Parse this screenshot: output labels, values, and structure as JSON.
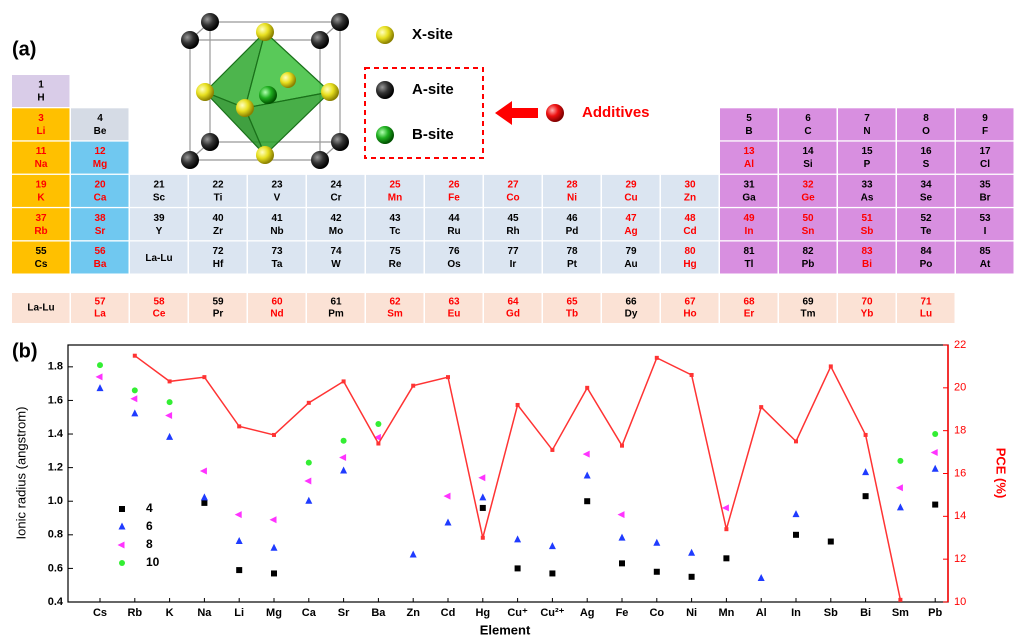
{
  "panel_a": {
    "label": "(a)",
    "legend": {
      "x_site": "X-site",
      "a_site": "A-site",
      "b_site": "B-site",
      "additives": "Additives"
    },
    "rows": [
      [
        {
          "n": 1,
          "s": "H",
          "fill": "#d9cce8",
          "color": "#000000"
        },
        null,
        null,
        null,
        null,
        null,
        null,
        null,
        null,
        null,
        null,
        null,
        null,
        null,
        null,
        null,
        null
      ],
      [
        {
          "n": 3,
          "s": "Li",
          "fill": "#ffc000",
          "color": "#ff0000"
        },
        {
          "n": 4,
          "s": "Be",
          "fill": "#d5dbe5",
          "color": "#000000"
        },
        null,
        null,
        null,
        null,
        null,
        null,
        null,
        null,
        null,
        null,
        {
          "n": 5,
          "s": "B",
          "fill": "#d88fe0",
          "color": "#000000"
        },
        {
          "n": 6,
          "s": "C",
          "fill": "#d88fe0",
          "color": "#000000"
        },
        {
          "n": 7,
          "s": "N",
          "fill": "#d88fe0",
          "color": "#000000"
        },
        {
          "n": 8,
          "s": "O",
          "fill": "#d88fe0",
          "color": "#000000"
        },
        {
          "n": 9,
          "s": "F",
          "fill": "#d88fe0",
          "color": "#000000"
        }
      ],
      [
        {
          "n": 11,
          "s": "Na",
          "fill": "#ffc000",
          "color": "#ff0000"
        },
        {
          "n": 12,
          "s": "Mg",
          "fill": "#70c8f0",
          "color": "#ff0000"
        },
        null,
        null,
        null,
        null,
        null,
        null,
        null,
        null,
        null,
        null,
        {
          "n": 13,
          "s": "Al",
          "fill": "#d88fe0",
          "color": "#ff0000"
        },
        {
          "n": 14,
          "s": "Si",
          "fill": "#d88fe0",
          "color": "#000000"
        },
        {
          "n": 15,
          "s": "P",
          "fill": "#d88fe0",
          "color": "#000000"
        },
        {
          "n": 16,
          "s": "S",
          "fill": "#d88fe0",
          "color": "#000000"
        },
        {
          "n": 17,
          "s": "Cl",
          "fill": "#d88fe0",
          "color": "#000000"
        }
      ],
      [
        {
          "n": 19,
          "s": "K",
          "fill": "#ffc000",
          "color": "#ff0000"
        },
        {
          "n": 20,
          "s": "Ca",
          "fill": "#70c8f0",
          "color": "#ff0000"
        },
        {
          "n": 21,
          "s": "Sc",
          "fill": "#dbe5f1",
          "color": "#000000"
        },
        {
          "n": 22,
          "s": "Ti",
          "fill": "#dbe5f1",
          "color": "#000000"
        },
        {
          "n": 23,
          "s": "V",
          "fill": "#dbe5f1",
          "color": "#000000"
        },
        {
          "n": 24,
          "s": "Cr",
          "fill": "#dbe5f1",
          "color": "#000000"
        },
        {
          "n": 25,
          "s": "Mn",
          "fill": "#dbe5f1",
          "color": "#ff0000"
        },
        {
          "n": 26,
          "s": "Fe",
          "fill": "#dbe5f1",
          "color": "#ff0000"
        },
        {
          "n": 27,
          "s": "Co",
          "fill": "#dbe5f1",
          "color": "#ff0000"
        },
        {
          "n": 28,
          "s": "Ni",
          "fill": "#dbe5f1",
          "color": "#ff0000"
        },
        {
          "n": 29,
          "s": "Cu",
          "fill": "#dbe5f1",
          "color": "#ff0000"
        },
        {
          "n": 30,
          "s": "Zn",
          "fill": "#dbe5f1",
          "color": "#ff0000"
        },
        {
          "n": 31,
          "s": "Ga",
          "fill": "#d88fe0",
          "color": "#000000"
        },
        {
          "n": 32,
          "s": "Ge",
          "fill": "#d88fe0",
          "color": "#ff0000"
        },
        {
          "n": 33,
          "s": "As",
          "fill": "#d88fe0",
          "color": "#000000"
        },
        {
          "n": 34,
          "s": "Se",
          "fill": "#d88fe0",
          "color": "#000000"
        },
        {
          "n": 35,
          "s": "Br",
          "fill": "#d88fe0",
          "color": "#000000"
        }
      ],
      [
        {
          "n": 37,
          "s": "Rb",
          "fill": "#ffc000",
          "color": "#ff0000"
        },
        {
          "n": 38,
          "s": "Sr",
          "fill": "#70c8f0",
          "color": "#ff0000"
        },
        {
          "n": 39,
          "s": "Y",
          "fill": "#dbe5f1",
          "color": "#000000"
        },
        {
          "n": 40,
          "s": "Zr",
          "fill": "#dbe5f1",
          "color": "#000000"
        },
        {
          "n": 41,
          "s": "Nb",
          "fill": "#dbe5f1",
          "color": "#000000"
        },
        {
          "n": 42,
          "s": "Mo",
          "fill": "#dbe5f1",
          "color": "#000000"
        },
        {
          "n": 43,
          "s": "Tc",
          "fill": "#dbe5f1",
          "color": "#000000"
        },
        {
          "n": 44,
          "s": "Ru",
          "fill": "#dbe5f1",
          "color": "#000000"
        },
        {
          "n": 45,
          "s": "Rh",
          "fill": "#dbe5f1",
          "color": "#000000"
        },
        {
          "n": 46,
          "s": "Pd",
          "fill": "#dbe5f1",
          "color": "#000000"
        },
        {
          "n": 47,
          "s": "Ag",
          "fill": "#dbe5f1",
          "color": "#ff0000"
        },
        {
          "n": 48,
          "s": "Cd",
          "fill": "#dbe5f1",
          "color": "#ff0000"
        },
        {
          "n": 49,
          "s": "In",
          "fill": "#d88fe0",
          "color": "#ff0000"
        },
        {
          "n": 50,
          "s": "Sn",
          "fill": "#d88fe0",
          "color": "#ff0000"
        },
        {
          "n": 51,
          "s": "Sb",
          "fill": "#d88fe0",
          "color": "#ff0000"
        },
        {
          "n": 52,
          "s": "Te",
          "fill": "#d88fe0",
          "color": "#000000"
        },
        {
          "n": 53,
          "s": "I",
          "fill": "#d88fe0",
          "color": "#000000"
        }
      ],
      [
        {
          "n": 55,
          "s": "Cs",
          "fill": "#ffc000",
          "color": "#000000"
        },
        {
          "n": 56,
          "s": "Ba",
          "fill": "#70c8f0",
          "color": "#ff0000"
        },
        {
          "s": "La-Lu",
          "fill": "#dbe5f1",
          "color": "#000000"
        },
        {
          "n": 72,
          "s": "Hf",
          "fill": "#dbe5f1",
          "color": "#000000"
        },
        {
          "n": 73,
          "s": "Ta",
          "fill": "#dbe5f1",
          "color": "#000000"
        },
        {
          "n": 74,
          "s": "W",
          "fill": "#dbe5f1",
          "color": "#000000"
        },
        {
          "n": 75,
          "s": "Re",
          "fill": "#dbe5f1",
          "color": "#000000"
        },
        {
          "n": 76,
          "s": "Os",
          "fill": "#dbe5f1",
          "color": "#000000"
        },
        {
          "n": 77,
          "s": "Ir",
          "fill": "#dbe5f1",
          "color": "#000000"
        },
        {
          "n": 78,
          "s": "Pt",
          "fill": "#dbe5f1",
          "color": "#000000"
        },
        {
          "n": 79,
          "s": "Au",
          "fill": "#dbe5f1",
          "color": "#000000"
        },
        {
          "n": 80,
          "s": "Hg",
          "fill": "#dbe5f1",
          "color": "#ff0000"
        },
        {
          "n": 81,
          "s": "Tl",
          "fill": "#d88fe0",
          "color": "#000000"
        },
        {
          "n": 82,
          "s": "Pb",
          "fill": "#d88fe0",
          "color": "#000000"
        },
        {
          "n": 83,
          "s": "Bi",
          "fill": "#d88fe0",
          "color": "#ff0000"
        },
        {
          "n": 84,
          "s": "Po",
          "fill": "#d88fe0",
          "color": "#000000"
        },
        {
          "n": 85,
          "s": "At",
          "fill": "#d88fe0",
          "color": "#000000"
        }
      ]
    ],
    "lanthanides": {
      "label": "La-Lu",
      "fill": "#fbe2d5",
      "cells": [
        {
          "n": 57,
          "s": "La",
          "color": "#ff0000"
        },
        {
          "n": 58,
          "s": "Ce",
          "color": "#ff0000"
        },
        {
          "n": 59,
          "s": "Pr",
          "color": "#000000"
        },
        {
          "n": 60,
          "s": "Nd",
          "color": "#ff0000"
        },
        {
          "n": 61,
          "s": "Pm",
          "color": "#000000"
        },
        {
          "n": 62,
          "s": "Sm",
          "color": "#ff0000"
        },
        {
          "n": 63,
          "s": "Eu",
          "color": "#ff0000"
        },
        {
          "n": 64,
          "s": "Gd",
          "color": "#ff0000"
        },
        {
          "n": 65,
          "s": "Tb",
          "color": "#ff0000"
        },
        {
          "n": 66,
          "s": "Dy",
          "color": "#000000"
        },
        {
          "n": 67,
          "s": "Ho",
          "color": "#ff0000"
        },
        {
          "n": 68,
          "s": "Er",
          "color": "#ff0000"
        },
        {
          "n": 69,
          "s": "Tm",
          "color": "#000000"
        },
        {
          "n": 70,
          "s": "Yb",
          "color": "#ff0000"
        },
        {
          "n": 71,
          "s": "Lu",
          "color": "#ff0000"
        }
      ]
    }
  },
  "chart_data": {
    "type": "scatter",
    "label": "(b)",
    "x_label": "Element",
    "y_label": "Ionic radius (angstrom)",
    "y2_label": "PCE (%)",
    "categories": [
      "Cs",
      "Rb",
      "K",
      "Na",
      "Li",
      "Mg",
      "Ca",
      "Sr",
      "Ba",
      "Zn",
      "Cd",
      "Hg",
      "Cu⁺",
      "Cu²⁺",
      "Ag",
      "Fe",
      "Co",
      "Ni",
      "Mn",
      "Al",
      "In",
      "Sb",
      "Bi",
      "Sm",
      "Pb"
    ],
    "ylim": [
      0.4,
      1.93
    ],
    "yticks": [
      0.4,
      0.6,
      0.8,
      {
        "value": 1,
        "label": "1.0"
      },
      1.2,
      1.4,
      1.6,
      1.8
    ],
    "y2lim": [
      10,
      22
    ],
    "y2ticks": [
      10,
      12,
      14,
      16,
      18,
      20,
      22
    ],
    "y2_color": "#ff0000",
    "legend": "lower left",
    "series": [
      {
        "name": "4",
        "color": "#000000",
        "marker": "square",
        "values": [
          null,
          null,
          null,
          0.99,
          0.59,
          0.57,
          null,
          null,
          null,
          null,
          null,
          0.96,
          0.6,
          0.57,
          1.0,
          0.63,
          0.58,
          0.55,
          0.66,
          null,
          0.8,
          0.76,
          1.03,
          null,
          0.98
        ]
      },
      {
        "name": "6",
        "color": "#1f3bff",
        "marker": "triangle-up",
        "values": [
          1.67,
          1.52,
          1.38,
          1.02,
          0.76,
          0.72,
          1.0,
          1.18,
          null,
          0.68,
          0.87,
          1.02,
          0.77,
          0.73,
          1.15,
          0.78,
          0.75,
          0.69,
          null,
          0.54,
          0.92,
          null,
          1.17,
          0.96,
          1.19
        ]
      },
      {
        "name": "8",
        "color": "#ff33ff",
        "marker": "triangle-left",
        "values": [
          1.74,
          1.61,
          1.51,
          1.18,
          0.92,
          0.89,
          1.12,
          1.26,
          1.38,
          null,
          1.03,
          1.14,
          null,
          null,
          1.28,
          0.92,
          null,
          null,
          0.96,
          null,
          null,
          null,
          null,
          1.08,
          1.29
        ]
      },
      {
        "name": "10",
        "color": "#33ee33",
        "marker": "circle",
        "values": [
          1.81,
          1.66,
          1.59,
          null,
          null,
          null,
          1.23,
          1.36,
          1.46,
          null,
          null,
          null,
          null,
          null,
          null,
          null,
          null,
          null,
          null,
          null,
          null,
          null,
          null,
          1.24,
          1.4
        ]
      },
      {
        "type": "line",
        "axis": "y2",
        "color": "#ff3333",
        "marker": "square",
        "values": [
          null,
          21.5,
          20.3,
          20.5,
          18.2,
          17.8,
          19.3,
          20.3,
          17.4,
          20.1,
          20.5,
          13.0,
          19.2,
          17.1,
          20.0,
          17.3,
          21.4,
          20.6,
          13.4,
          19.1,
          17.5,
          21.0,
          17.8,
          10.1,
          null
        ]
      }
    ]
  }
}
